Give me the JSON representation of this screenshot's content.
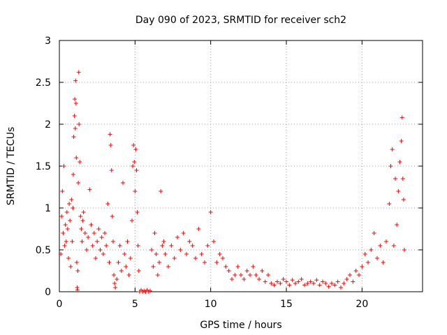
{
  "chart_data": {
    "type": "scatter",
    "title": "Day 090 of 2023, SRMTID for receiver sch2",
    "xlabel": "GPS time / hours",
    "ylabel": "SRMTID / TECUs",
    "xlim": [
      0,
      24
    ],
    "ylim": [
      0,
      3
    ],
    "xticks": [
      0,
      5,
      10,
      15,
      20
    ],
    "yticks": [
      0,
      0.5,
      1,
      1.5,
      2,
      2.5,
      3
    ],
    "grid": true,
    "marker": "+",
    "marker_color": "#ff0000",
    "series": [
      {
        "name": "sch2",
        "points": [
          [
            0.1,
            0.45
          ],
          [
            0.15,
            0.9
          ],
          [
            0.2,
            1.2
          ],
          [
            0.25,
            0.7
          ],
          [
            0.3,
            1.5
          ],
          [
            0.35,
            0.55
          ],
          [
            0.4,
            0.8
          ],
          [
            0.45,
            0.6
          ],
          [
            0.5,
            0.95
          ],
          [
            0.55,
            0.75
          ],
          [
            0.6,
            0.4
          ],
          [
            0.65,
            1.05
          ],
          [
            0.7,
            0.85
          ],
          [
            0.75,
            0.3
          ],
          [
            0.8,
            1.1
          ],
          [
            0.85,
            0.6
          ],
          [
            0.9,
            1.0
          ],
          [
            0.92,
            1.4
          ],
          [
            0.95,
            1.85
          ],
          [
            1.0,
            2.1
          ],
          [
            1.02,
            2.3
          ],
          [
            1.05,
            1.95
          ],
          [
            1.07,
            2.52
          ],
          [
            1.1,
            2.25
          ],
          [
            1.12,
            1.6
          ],
          [
            1.15,
            0.35
          ],
          [
            1.18,
            0.05
          ],
          [
            1.2,
            0.02
          ],
          [
            1.22,
            0.25
          ],
          [
            1.25,
            1.3
          ],
          [
            1.28,
            2.62
          ],
          [
            1.3,
            2.0
          ],
          [
            1.35,
            1.55
          ],
          [
            1.4,
            0.9
          ],
          [
            1.45,
            0.75
          ],
          [
            1.5,
            0.6
          ],
          [
            1.55,
            0.85
          ],
          [
            1.6,
            0.95
          ],
          [
            1.7,
            0.7
          ],
          [
            1.8,
            0.5
          ],
          [
            1.9,
            0.65
          ],
          [
            2.0,
            1.22
          ],
          [
            2.1,
            0.8
          ],
          [
            2.2,
            0.55
          ],
          [
            2.3,
            0.7
          ],
          [
            2.4,
            0.4
          ],
          [
            2.5,
            0.6
          ],
          [
            2.6,
            0.75
          ],
          [
            2.7,
            0.5
          ],
          [
            2.8,
            0.65
          ],
          [
            2.9,
            0.45
          ],
          [
            3.0,
            0.7
          ],
          [
            3.1,
            0.55
          ],
          [
            3.2,
            1.05
          ],
          [
            3.3,
            0.35
          ],
          [
            3.35,
            1.88
          ],
          [
            3.4,
            1.75
          ],
          [
            3.45,
            1.45
          ],
          [
            3.5,
            0.9
          ],
          [
            3.55,
            0.6
          ],
          [
            3.6,
            0.2
          ],
          [
            3.65,
            0.1
          ],
          [
            3.7,
            0.05
          ],
          [
            3.8,
            0.15
          ],
          [
            3.9,
            0.35
          ],
          [
            4.0,
            0.55
          ],
          [
            4.1,
            0.25
          ],
          [
            4.2,
            1.3
          ],
          [
            4.3,
            0.45
          ],
          [
            4.4,
            0.3
          ],
          [
            4.5,
            0.6
          ],
          [
            4.6,
            0.2
          ],
          [
            4.7,
            0.4
          ],
          [
            4.8,
            0.85
          ],
          [
            4.85,
            1.5
          ],
          [
            4.9,
            1.75
          ],
          [
            4.95,
            1.55
          ],
          [
            5.0,
            1.2
          ],
          [
            5.05,
            1.7
          ],
          [
            5.1,
            1.45
          ],
          [
            5.15,
            0.95
          ],
          [
            5.2,
            0.55
          ],
          [
            5.25,
            0.25
          ],
          [
            5.3,
            0.0
          ],
          [
            5.4,
            0.02
          ],
          [
            5.5,
            0.0
          ],
          [
            5.6,
            0.01
          ],
          [
            5.7,
            0.0
          ],
          [
            5.8,
            0.02
          ],
          [
            5.9,
            0.0
          ],
          [
            6.0,
            0.01
          ],
          [
            6.1,
            0.5
          ],
          [
            6.2,
            0.3
          ],
          [
            6.3,
            0.7
          ],
          [
            6.4,
            0.45
          ],
          [
            6.5,
            0.2
          ],
          [
            6.6,
            0.35
          ],
          [
            6.7,
            1.2
          ],
          [
            6.8,
            0.55
          ],
          [
            6.9,
            0.6
          ],
          [
            7.0,
            0.45
          ],
          [
            7.2,
            0.3
          ],
          [
            7.4,
            0.55
          ],
          [
            7.6,
            0.4
          ],
          [
            7.8,
            0.65
          ],
          [
            8.0,
            0.5
          ],
          [
            8.2,
            0.7
          ],
          [
            8.4,
            0.45
          ],
          [
            8.6,
            0.6
          ],
          [
            8.8,
            0.55
          ],
          [
            9.0,
            0.4
          ],
          [
            9.2,
            0.75
          ],
          [
            9.4,
            0.45
          ],
          [
            9.6,
            0.35
          ],
          [
            9.8,
            0.55
          ],
          [
            10.0,
            0.95
          ],
          [
            10.2,
            0.6
          ],
          [
            10.4,
            0.35
          ],
          [
            10.6,
            0.45
          ],
          [
            10.8,
            0.4
          ],
          [
            11.0,
            0.3
          ],
          [
            11.2,
            0.25
          ],
          [
            11.4,
            0.15
          ],
          [
            11.6,
            0.2
          ],
          [
            11.8,
            0.3
          ],
          [
            12.0,
            0.2
          ],
          [
            12.2,
            0.15
          ],
          [
            12.4,
            0.25
          ],
          [
            12.6,
            0.2
          ],
          [
            12.8,
            0.3
          ],
          [
            13.0,
            0.2
          ],
          [
            13.2,
            0.15
          ],
          [
            13.4,
            0.25
          ],
          [
            13.6,
            0.12
          ],
          [
            13.8,
            0.2
          ],
          [
            14.0,
            0.1
          ],
          [
            14.2,
            0.08
          ],
          [
            14.4,
            0.12
          ],
          [
            14.6,
            0.1
          ],
          [
            14.8,
            0.15
          ],
          [
            15.0,
            0.12
          ],
          [
            15.2,
            0.08
          ],
          [
            15.4,
            0.14
          ],
          [
            15.6,
            0.1
          ],
          [
            15.8,
            0.12
          ],
          [
            16.0,
            0.15
          ],
          [
            16.2,
            0.08
          ],
          [
            16.4,
            0.1
          ],
          [
            16.6,
            0.12
          ],
          [
            16.8,
            0.1
          ],
          [
            17.0,
            0.14
          ],
          [
            17.2,
            0.08
          ],
          [
            17.4,
            0.12
          ],
          [
            17.6,
            0.1
          ],
          [
            17.8,
            0.06
          ],
          [
            18.0,
            0.1
          ],
          [
            18.2,
            0.08
          ],
          [
            18.4,
            0.12
          ],
          [
            18.6,
            0.05
          ],
          [
            18.8,
            0.1
          ],
          [
            19.0,
            0.15
          ],
          [
            19.2,
            0.2
          ],
          [
            19.4,
            0.12
          ],
          [
            19.6,
            0.25
          ],
          [
            19.8,
            0.2
          ],
          [
            20.0,
            0.3
          ],
          [
            20.2,
            0.45
          ],
          [
            20.4,
            0.35
          ],
          [
            20.6,
            0.5
          ],
          [
            20.8,
            0.7
          ],
          [
            21.0,
            0.4
          ],
          [
            21.2,
            0.55
          ],
          [
            21.4,
            0.35
          ],
          [
            21.6,
            0.6
          ],
          [
            21.8,
            1.05
          ],
          [
            21.9,
            1.5
          ],
          [
            22.0,
            1.7
          ],
          [
            22.1,
            0.55
          ],
          [
            22.2,
            1.35
          ],
          [
            22.3,
            0.8
          ],
          [
            22.4,
            1.2
          ],
          [
            22.5,
            1.55
          ],
          [
            22.6,
            1.8
          ],
          [
            22.65,
            2.08
          ],
          [
            22.7,
            1.35
          ],
          [
            22.75,
            1.1
          ],
          [
            22.8,
            0.5
          ]
        ]
      }
    ]
  }
}
